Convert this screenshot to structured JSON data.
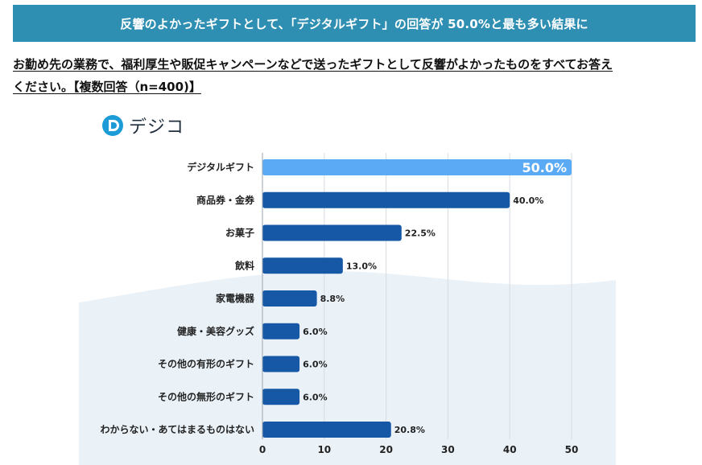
{
  "header": {
    "title": "反響のよかったギフトとして、「デジタルギフト」の回答が 50.0%と最も多い結果に"
  },
  "question": {
    "line1": "お勤め先の業務で、福利厚生や販促キャンペーンなどで送ったギフトとして反響がよかったものをすべてお答え",
    "line2": "ください。【複数回答（n=400)】"
  },
  "logo": {
    "text": "デジコ",
    "icon": "digico-logo-icon"
  },
  "colors": {
    "banner": "#2f8fb2",
    "highlight": "#5aaaf5",
    "bar": "#1658a6",
    "wave": "#eaf2f8"
  },
  "chart_data": {
    "type": "bar",
    "orientation": "horizontal",
    "categories": [
      "デジタルギフト",
      "商品券・金券",
      "お菓子",
      "飲料",
      "家電機器",
      "健康・美容グッズ",
      "その他の有形のギフト",
      "その他の無形のギフト",
      "わからない・あてはまるものはない"
    ],
    "values": [
      50.0,
      40.0,
      22.5,
      13.0,
      8.8,
      6.0,
      6.0,
      6.0,
      20.8
    ],
    "value_labels": [
      "50.0%",
      "40.0%",
      "22.5%",
      "13.0%",
      "8.8%",
      "6.0%",
      "6.0%",
      "6.0%",
      "20.8%"
    ],
    "xlim": [
      0,
      50
    ],
    "x_ticks": [
      0,
      10,
      20,
      30,
      40,
      50
    ],
    "grid": true,
    "highlight_index": 0
  }
}
